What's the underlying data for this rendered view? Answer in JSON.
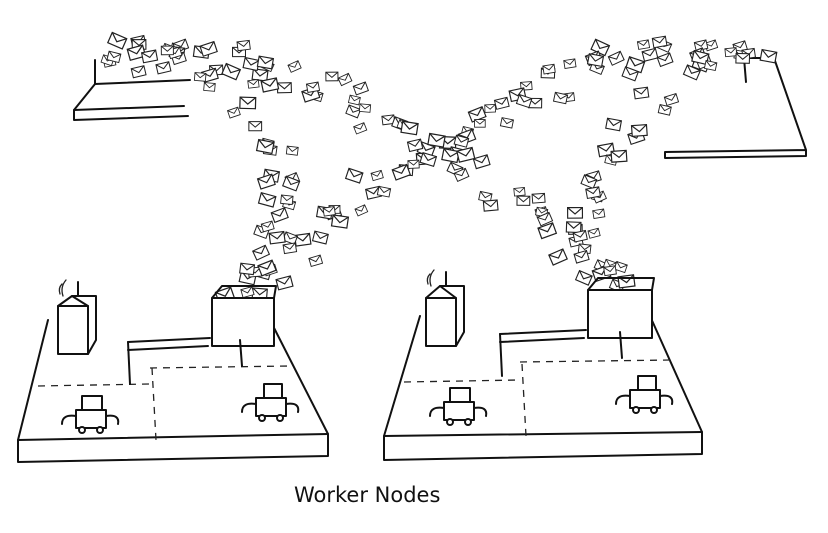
{
  "caption": "Worker Nodes"
}
